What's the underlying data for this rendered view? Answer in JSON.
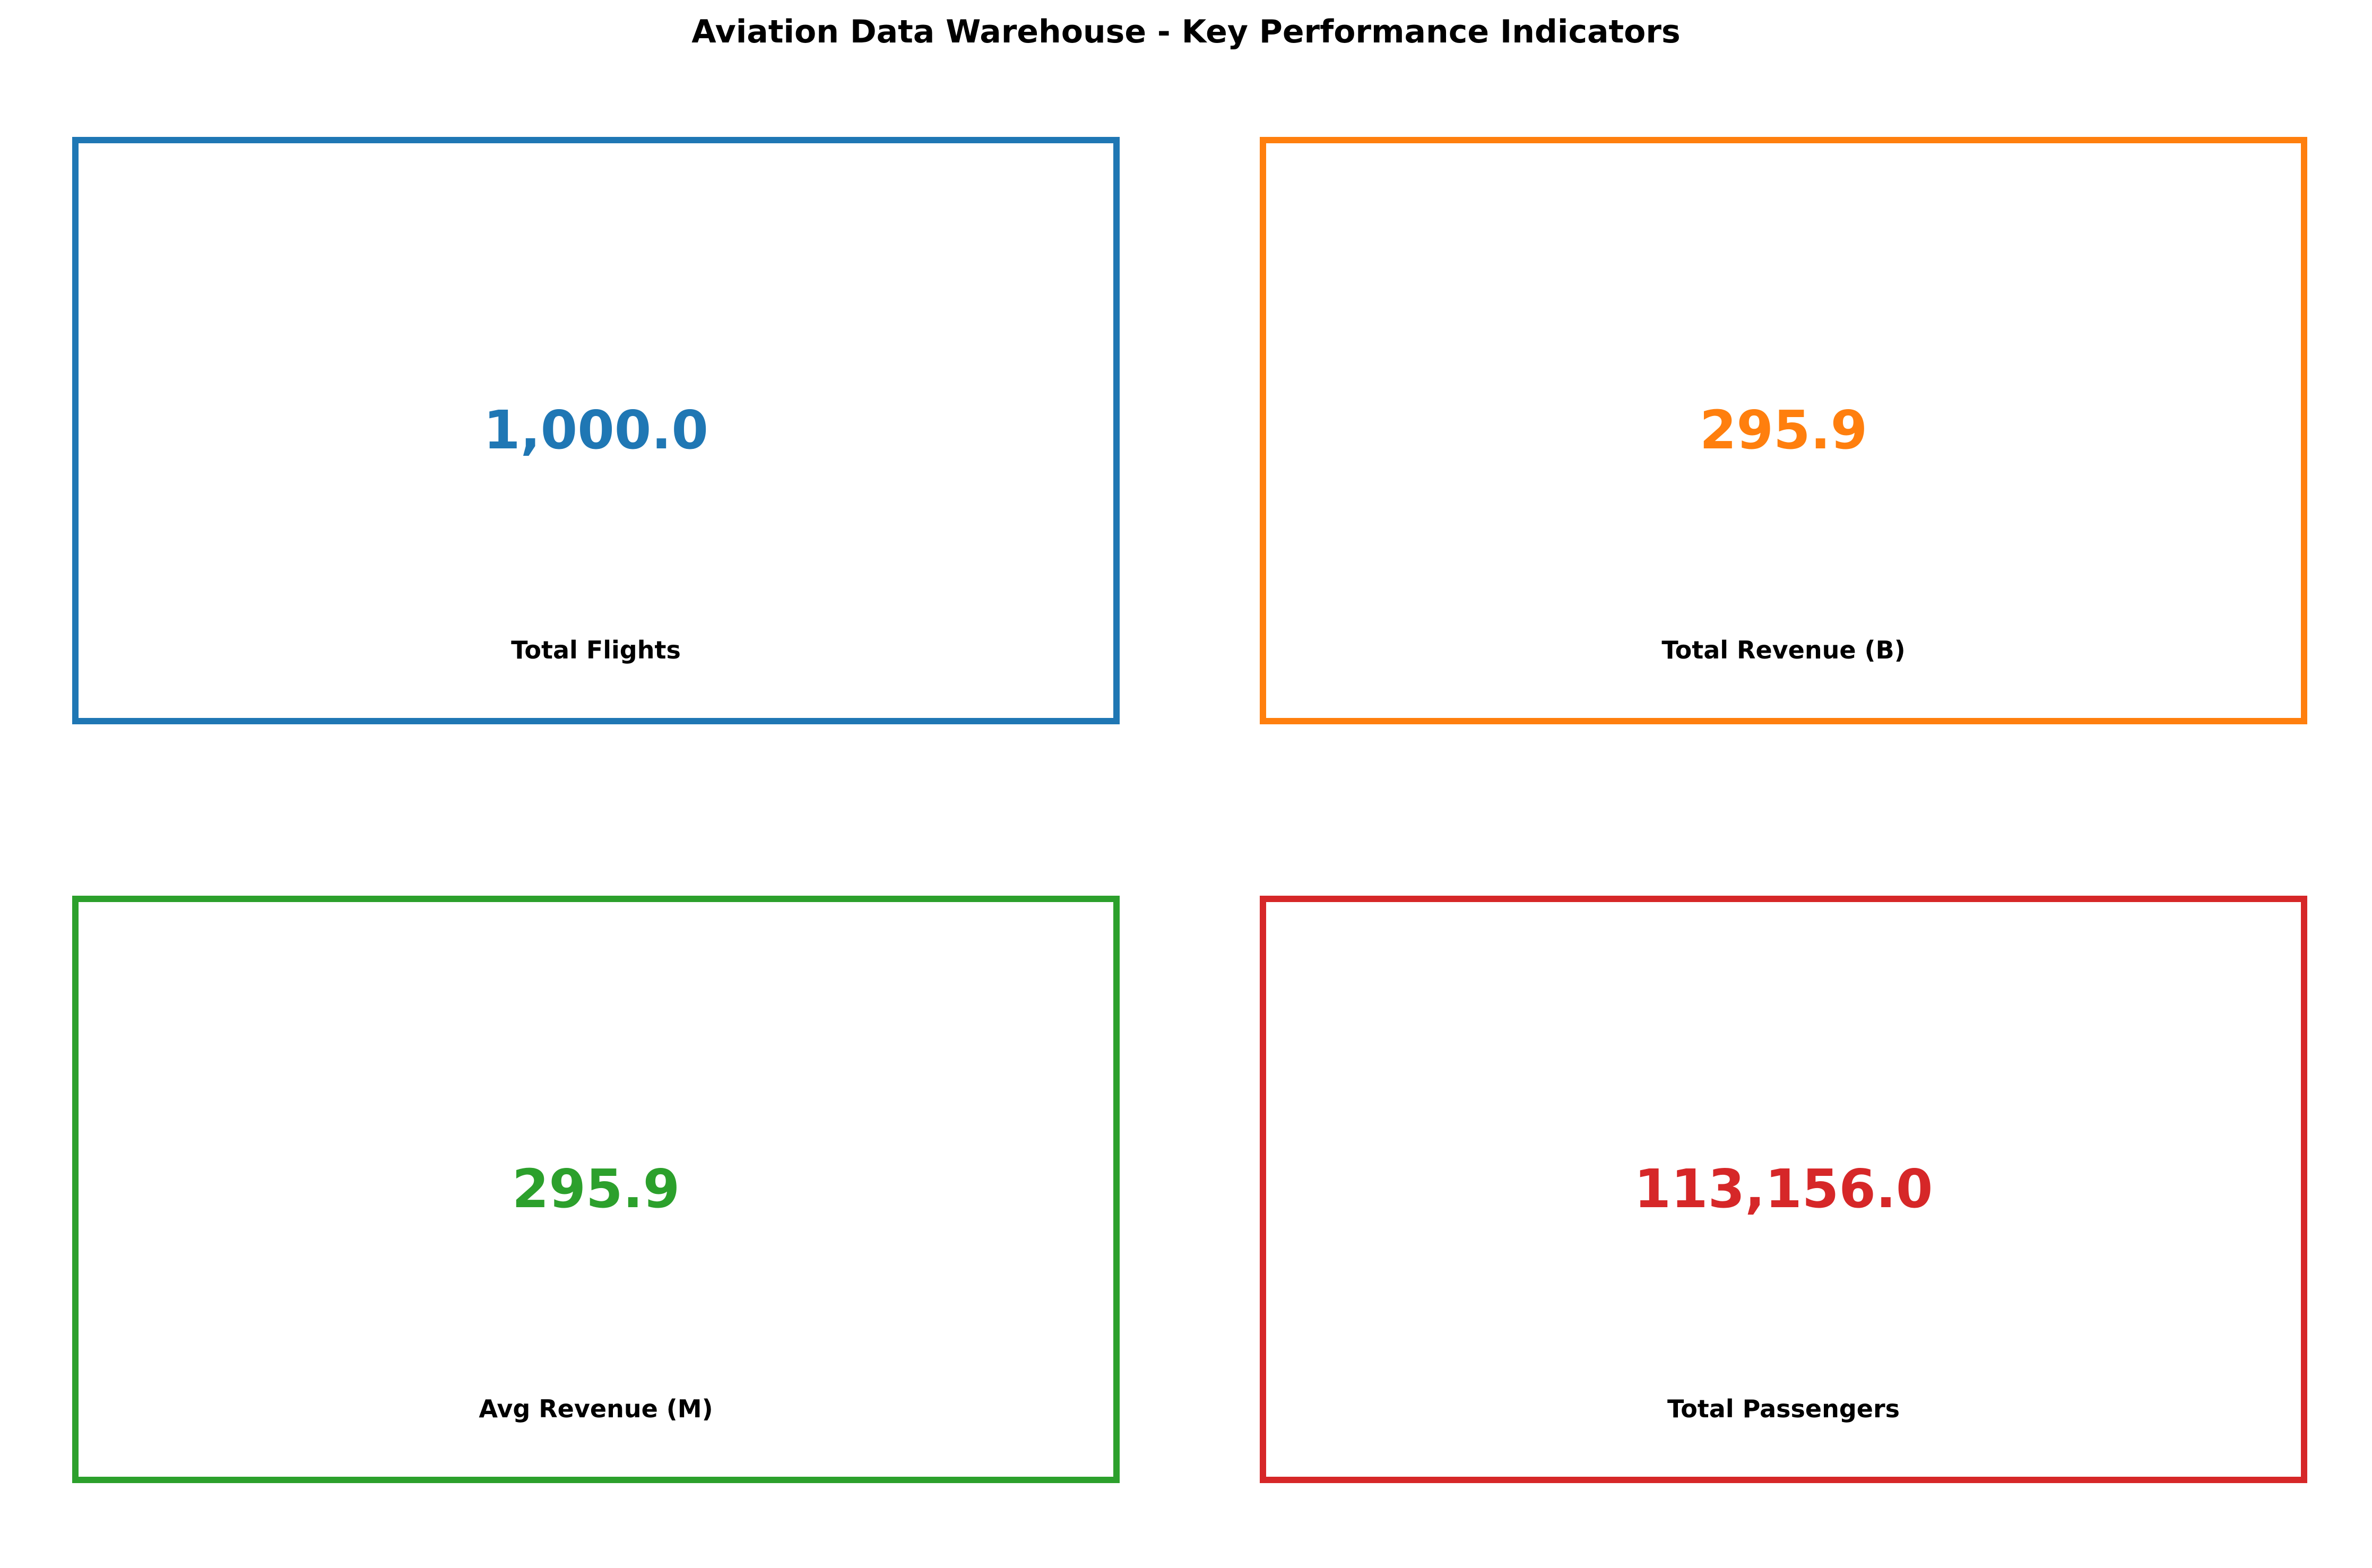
{
  "chart_data": {
    "type": "table",
    "title": "Aviation Data Warehouse - Key Performance Indicators",
    "kpis": [
      {
        "label": "Total Flights",
        "value": 1000.0,
        "display": "1,000.0",
        "color": "#1f77b4"
      },
      {
        "label": "Total Revenue (B)",
        "value": 295.9,
        "display": "295.9",
        "color": "#ff7f0e"
      },
      {
        "label": "Avg Revenue (M)",
        "value": 295.9,
        "display": "295.9",
        "color": "#2ca02c"
      },
      {
        "label": "Total Passengers",
        "value": 113156.0,
        "display": "113,156.0",
        "color": "#d62728"
      }
    ]
  }
}
